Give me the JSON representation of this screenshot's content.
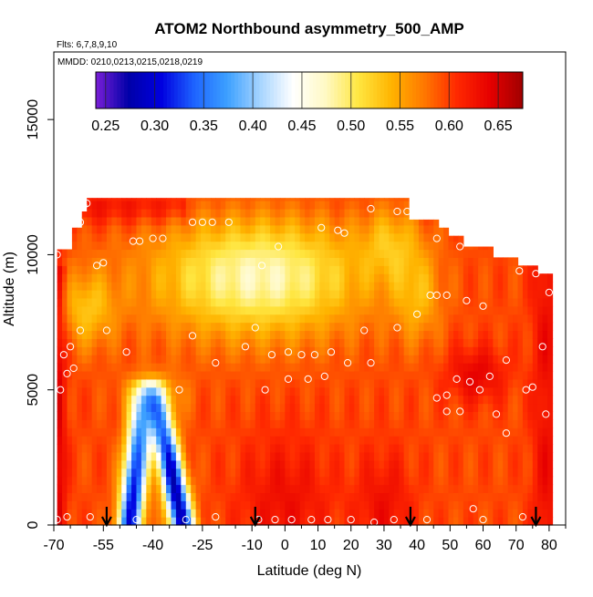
{
  "chart_data": {
    "type": "heatmap",
    "title": "ATOM2 Northbound asymmetry_500_AMP",
    "subtitle_flights": "Flts: 6,7,8,9,10",
    "subtitle_dates": "MMDD: 0210,0213,0215,0218,0219",
    "xlabel": "Latitude (deg N)",
    "ylabel": "Altitude (m)",
    "xlim": [
      -70,
      85
    ],
    "ylim": [
      0,
      17500
    ],
    "x_ticks": [
      {
        "value": -70,
        "label": "-70"
      },
      {
        "value": -55,
        "label": "-55"
      },
      {
        "value": -40,
        "label": "-40"
      },
      {
        "value": -25,
        "label": "-25"
      },
      {
        "value": -10,
        "label": "-10"
      },
      {
        "value": 0,
        "label": "0"
      },
      {
        "value": 10,
        "label": "10"
      },
      {
        "value": 20,
        "label": "20"
      },
      {
        "value": 30,
        "label": "30"
      },
      {
        "value": 40,
        "label": "40"
      },
      {
        "value": 50,
        "label": "50"
      },
      {
        "value": 60,
        "label": "60"
      },
      {
        "value": 70,
        "label": "70"
      },
      {
        "value": 80,
        "label": "80"
      }
    ],
    "x_minor_ticks": [
      -65,
      -60,
      -50,
      -45,
      -35,
      -30,
      -20,
      -15,
      -5,
      5,
      15,
      25,
      35,
      45,
      55,
      65,
      75,
      85
    ],
    "y_ticks": [
      {
        "value": 0,
        "label": "0"
      },
      {
        "value": 5000,
        "label": "5000"
      },
      {
        "value": 10000,
        "label": "10000"
      },
      {
        "value": 15000,
        "label": "15000"
      }
    ],
    "colorbar": {
      "range": [
        0.24,
        0.675
      ],
      "ticks": [
        {
          "value": 0.25,
          "label": "0.25"
        },
        {
          "value": 0.3,
          "label": "0.30"
        },
        {
          "value": 0.35,
          "label": "0.35"
        },
        {
          "value": 0.4,
          "label": "0.40"
        },
        {
          "value": 0.45,
          "label": "0.45"
        },
        {
          "value": 0.5,
          "label": "0.50"
        },
        {
          "value": 0.55,
          "label": "0.55"
        },
        {
          "value": 0.6,
          "label": "0.60"
        },
        {
          "value": 0.65,
          "label": "0.65"
        }
      ],
      "palette": [
        "#7a1fd6",
        "#0000a8",
        "#0000e0",
        "#1e64ff",
        "#3ca0ff",
        "#a6d4ff",
        "#ffffff",
        "#fff9c4",
        "#ffe640",
        "#ffb400",
        "#ff7800",
        "#ff2800",
        "#e60000",
        "#a00000"
      ]
    },
    "grid": false,
    "flight_arrows_latitude": [
      -54,
      -9,
      38,
      76
    ],
    "field_note": "Asymmetry parameter values (0.24-0.675) gridded by latitude (about -69 to 81 deg N) and altitude (0 to ~12 km); lowest values (~0.28-0.35) in two tilted columns near -47 and -31 deg N below 5.5 km; highest (~0.62-0.66) near the surface at -69, -5 to 10 and ~30 deg N and at the top edge south of -35; light (~0.47-0.50) band aloft 7-11 km from -50 to 35 deg N.",
    "sample_points": [
      {
        "lat": -69,
        "alt": 200
      },
      {
        "lat": -66,
        "alt": 300
      },
      {
        "lat": -59,
        "alt": 300
      },
      {
        "lat": -45,
        "alt": 200
      },
      {
        "lat": -30,
        "alt": 200
      },
      {
        "lat": -21,
        "alt": 300
      },
      {
        "lat": -8,
        "alt": 200
      },
      {
        "lat": -3,
        "alt": 200
      },
      {
        "lat": 2,
        "alt": 200
      },
      {
        "lat": 8,
        "alt": 200
      },
      {
        "lat": 13,
        "alt": 200
      },
      {
        "lat": 20,
        "alt": 200
      },
      {
        "lat": 27,
        "alt": 100
      },
      {
        "lat": 33,
        "alt": 200
      },
      {
        "lat": 43,
        "alt": 200
      },
      {
        "lat": 60,
        "alt": 200
      },
      {
        "lat": 72,
        "alt": 300
      },
      {
        "lat": 57,
        "alt": 600
      },
      {
        "lat": 67,
        "alt": 3400
      },
      {
        "lat": 64,
        "alt": 4100
      },
      {
        "lat": 53,
        "alt": 4200
      },
      {
        "lat": 49,
        "alt": 4200
      },
      {
        "lat": 46,
        "alt": 4700
      },
      {
        "lat": 49,
        "alt": 4800
      },
      {
        "lat": 79,
        "alt": 4100
      },
      {
        "lat": 73,
        "alt": 5000
      },
      {
        "lat": 75,
        "alt": 5100
      },
      {
        "lat": 59,
        "alt": 5000
      },
      {
        "lat": 62,
        "alt": 5500
      },
      {
        "lat": 52,
        "alt": 5400
      },
      {
        "lat": 56,
        "alt": 5300
      },
      {
        "lat": 67,
        "alt": 6100
      },
      {
        "lat": 78,
        "alt": 6600
      },
      {
        "lat": 40,
        "alt": 7800
      },
      {
        "lat": 49,
        "alt": 8500
      },
      {
        "lat": 55,
        "alt": 8300
      },
      {
        "lat": 60,
        "alt": 8100
      },
      {
        "lat": 44,
        "alt": 8500
      },
      {
        "lat": 46,
        "alt": 8500
      },
      {
        "lat": 80,
        "alt": 8600
      },
      {
        "lat": 76,
        "alt": 9300
      },
      {
        "lat": 71,
        "alt": 9400
      },
      {
        "lat": -68,
        "alt": 5000
      },
      {
        "lat": -64,
        "alt": 5800
      },
      {
        "lat": -66,
        "alt": 5600
      },
      {
        "lat": -67,
        "alt": 6300
      },
      {
        "lat": -65,
        "alt": 6600
      },
      {
        "lat": -62,
        "alt": 7200
      },
      {
        "lat": -54,
        "alt": 7200
      },
      {
        "lat": -48,
        "alt": 6400
      },
      {
        "lat": -28,
        "alt": 7000
      },
      {
        "lat": -21,
        "alt": 6000
      },
      {
        "lat": -12,
        "alt": 6600
      },
      {
        "lat": -9,
        "alt": 7300
      },
      {
        "lat": -4,
        "alt": 6300
      },
      {
        "lat": 1,
        "alt": 6400
      },
      {
        "lat": 5,
        "alt": 6300
      },
      {
        "lat": 9,
        "alt": 6300
      },
      {
        "lat": 14,
        "alt": 6400
      },
      {
        "lat": 19,
        "alt": 6000
      },
      {
        "lat": 24,
        "alt": 7200
      },
      {
        "lat": 26,
        "alt": 6000
      },
      {
        "lat": 34,
        "alt": 7300
      },
      {
        "lat": -32,
        "alt": 5000
      },
      {
        "lat": -6,
        "alt": 5000
      },
      {
        "lat": 1,
        "alt": 5400
      },
      {
        "lat": 7,
        "alt": 5400
      },
      {
        "lat": 12,
        "alt": 5500
      },
      {
        "lat": -69,
        "alt": 10000
      },
      {
        "lat": -57,
        "alt": 9600
      },
      {
        "lat": -55,
        "alt": 9700
      },
      {
        "lat": -46,
        "alt": 10500
      },
      {
        "lat": -44,
        "alt": 10500
      },
      {
        "lat": -40,
        "alt": 10600
      },
      {
        "lat": -37,
        "alt": 10600
      },
      {
        "lat": -28,
        "alt": 11200
      },
      {
        "lat": -25,
        "alt": 11200
      },
      {
        "lat": -22,
        "alt": 11200
      },
      {
        "lat": -17,
        "alt": 11200
      },
      {
        "lat": -7,
        "alt": 9600
      },
      {
        "lat": -2,
        "alt": 10300
      },
      {
        "lat": 11,
        "alt": 11000
      },
      {
        "lat": 16,
        "alt": 10900
      },
      {
        "lat": 18,
        "alt": 10800
      },
      {
        "lat": -67,
        "alt": 10600
      },
      {
        "lat": -62,
        "alt": 11200
      },
      {
        "lat": -61,
        "alt": 11800
      },
      {
        "lat": -60,
        "alt": 11900
      },
      {
        "lat": 26,
        "alt": 11700
      },
      {
        "lat": 34,
        "alt": 11600
      },
      {
        "lat": 37,
        "alt": 11600
      },
      {
        "lat": 46,
        "alt": 10600
      },
      {
        "lat": 53,
        "alt": 10300
      }
    ]
  }
}
